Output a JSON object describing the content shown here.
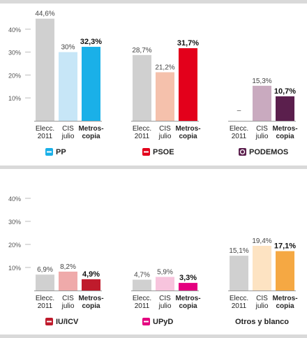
{
  "axis_ticks": [
    "40%",
    "30%",
    "20%",
    "10%"
  ],
  "colors": {
    "gray": "#d0d0d0",
    "pp_light": "#c7e6f7",
    "pp": "#1ab0e8",
    "psoe_light": "#f5c1ac",
    "psoe": "#e3001b",
    "pod_light": "#c9aabf",
    "pod": "#5b1f4d",
    "iu_light": "#efaaaa",
    "iu": "#bf1b2c",
    "upyd_light": "#f7c4dd",
    "upyd": "#e4007f",
    "otros_light": "#fde3c2",
    "otros": "#f5a843"
  },
  "chart_data": [
    {
      "type": "bar",
      "ylim": [
        0,
        50
      ],
      "yticks": [
        10,
        20,
        30,
        40
      ],
      "grid": false,
      "legend": "below",
      "groups": [
        {
          "name": "PP",
          "icon": "pp-logo-icon",
          "categories": [
            [
              "Elecc.",
              "2011"
            ],
            [
              "CIS",
              "julio"
            ],
            [
              "Metros-",
              "copia"
            ]
          ],
          "values": [
            44.6,
            30.0,
            32.3
          ],
          "labels": [
            "44,6%",
            "30%",
            "32,3%"
          ],
          "colors": [
            "gray",
            "pp_light",
            "pp"
          ]
        },
        {
          "name": "PSOE",
          "icon": "psoe-logo-icon",
          "categories": [
            [
              "Elecc.",
              "2011"
            ],
            [
              "CIS",
              "julio"
            ],
            [
              "Metros-",
              "copia"
            ]
          ],
          "values": [
            28.7,
            21.2,
            31.7
          ],
          "labels": [
            "28,7%",
            "21,2%",
            "31,7%"
          ],
          "colors": [
            "gray",
            "psoe_light",
            "psoe"
          ]
        },
        {
          "name": "PODEMOS",
          "icon": "podemos-logo-icon",
          "categories": [
            [
              "Elecc.",
              "2011"
            ],
            [
              "CIS",
              "julio"
            ],
            [
              "Metros-",
              "copia"
            ]
          ],
          "values": [
            null,
            15.3,
            10.7
          ],
          "labels": [
            "–",
            "15,3%",
            "10,7%"
          ],
          "colors": [
            "gray",
            "pod_light",
            "pod"
          ]
        }
      ]
    },
    {
      "type": "bar",
      "ylim": [
        0,
        50
      ],
      "yticks": [
        10,
        20,
        30,
        40
      ],
      "grid": false,
      "legend": "below",
      "groups": [
        {
          "name": "IU/ICV",
          "icon": "iu-logo-icon",
          "categories": [
            [
              "Elecc.",
              "2011"
            ],
            [
              "CIS",
              "julio"
            ],
            [
              "Metros-",
              "copia"
            ]
          ],
          "values": [
            6.9,
            8.2,
            4.9
          ],
          "labels": [
            "6,9%",
            "8,2%",
            "4,9%"
          ],
          "colors": [
            "gray",
            "iu_light",
            "iu"
          ]
        },
        {
          "name": "UPyD",
          "icon": "upyd-logo-icon",
          "categories": [
            [
              "Elecc.",
              "2011"
            ],
            [
              "CIS",
              "julio"
            ],
            [
              "Metros-",
              "copia"
            ]
          ],
          "values": [
            4.7,
            5.9,
            3.3
          ],
          "labels": [
            "4,7%",
            "5,9%",
            "3,3%"
          ],
          "colors": [
            "gray",
            "upyd_light",
            "upyd"
          ]
        },
        {
          "name": "Otros y blanco",
          "icon": "",
          "categories": [
            [
              "Elecc.",
              "2011"
            ],
            [
              "CIS",
              "julio"
            ],
            [
              "Metros-",
              "copia"
            ]
          ],
          "values": [
            15.1,
            19.4,
            17.1
          ],
          "labels": [
            "15,1%",
            "19,4%",
            "17,1%"
          ],
          "colors": [
            "gray",
            "otros_light",
            "otros"
          ]
        }
      ]
    }
  ]
}
